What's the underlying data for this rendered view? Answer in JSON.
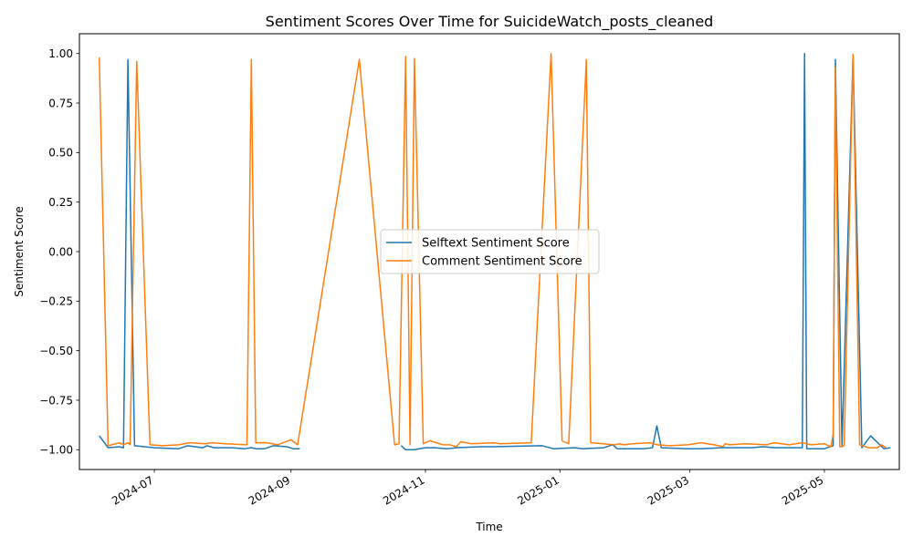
{
  "chart_data": {
    "type": "line",
    "title": "Sentiment Scores Over Time for SuicideWatch_posts_cleaned",
    "xlabel": "Time",
    "ylabel": "Sentiment Score",
    "xlim": [
      "2024-05-28",
      "2025-06-04"
    ],
    "ylim": [
      -1.1,
      1.1
    ],
    "x_ticks": [
      {
        "date": "2024-07-01",
        "label": "2024-07"
      },
      {
        "date": "2024-09-01",
        "label": "2024-09"
      },
      {
        "date": "2024-11-01",
        "label": "2024-11"
      },
      {
        "date": "2025-01-01",
        "label": "2025-01"
      },
      {
        "date": "2025-03-01",
        "label": "2025-03"
      },
      {
        "date": "2025-05-01",
        "label": "2025-05"
      }
    ],
    "y_ticks": [
      {
        "value": 1.0,
        "label": "1.00"
      },
      {
        "value": 0.75,
        "label": "0.75"
      },
      {
        "value": 0.5,
        "label": "0.50"
      },
      {
        "value": 0.25,
        "label": "0.25"
      },
      {
        "value": 0.0,
        "label": "0.00"
      },
      {
        "value": -0.25,
        "label": "−0.25"
      },
      {
        "value": -0.5,
        "label": "−0.50"
      },
      {
        "value": -0.75,
        "label": "−0.75"
      },
      {
        "value": -1.0,
        "label": "−1.00"
      }
    ],
    "grid": false,
    "legend_position": "center",
    "series": [
      {
        "name": "Selftext Sentiment Score",
        "color": "#1f77b4",
        "points": [
          [
            "2024-06-06",
            -0.93
          ],
          [
            "2024-06-10",
            -0.99
          ],
          [
            "2024-06-15",
            -0.985
          ],
          [
            "2024-06-17",
            -0.99
          ],
          [
            "2024-06-19",
            0.97
          ],
          [
            "2024-06-22",
            -0.98
          ],
          [
            "2024-07-01",
            -0.99
          ],
          [
            "2024-07-12",
            -0.995
          ],
          [
            "2024-07-16",
            -0.98
          ],
          [
            "2024-07-23",
            -0.99
          ],
          [
            "2024-07-25",
            -0.98
          ],
          [
            "2024-07-28",
            -0.99
          ],
          [
            "2024-08-05",
            -0.99
          ],
          [
            "2024-08-11",
            -0.995
          ],
          [
            "2024-08-14",
            -0.99
          ],
          [
            "2024-08-16",
            -0.995
          ],
          [
            "2024-08-20",
            -0.995
          ],
          [
            "2024-08-24",
            -0.98
          ],
          [
            "2024-08-30",
            -0.985
          ],
          [
            "2024-09-02",
            -0.995
          ],
          [
            "2024-09-05",
            -0.995
          ]
        ]
      },
      {
        "name": "Selftext Sentiment Score",
        "color": "#1f77b4",
        "points": [
          [
            "2024-10-21",
            -0.98
          ],
          [
            "2024-10-23",
            -1.0
          ],
          [
            "2024-10-27",
            -1.0
          ],
          [
            "2024-11-01",
            -0.99
          ],
          [
            "2024-11-05",
            -0.99
          ],
          [
            "2024-11-11",
            -0.995
          ],
          [
            "2024-11-15",
            -0.99
          ],
          [
            "2024-11-26",
            -0.985
          ],
          [
            "2024-12-01",
            -0.985
          ],
          [
            "2024-12-24",
            -0.98
          ],
          [
            "2024-12-29",
            -0.995
          ],
          [
            "2025-01-08",
            -0.99
          ],
          [
            "2025-01-11",
            -0.995
          ],
          [
            "2025-01-21",
            -0.99
          ],
          [
            "2025-01-25",
            -0.975
          ],
          [
            "2025-01-27",
            -0.995
          ],
          [
            "2025-02-08",
            -0.995
          ],
          [
            "2025-02-12",
            -0.99
          ],
          [
            "2025-02-14",
            -0.88
          ],
          [
            "2025-02-16",
            -0.99
          ],
          [
            "2025-02-28",
            -0.995
          ],
          [
            "2025-03-06",
            -0.995
          ],
          [
            "2025-03-15",
            -0.99
          ],
          [
            "2025-03-29",
            -0.99
          ],
          [
            "2025-04-03",
            -0.985
          ],
          [
            "2025-04-09",
            -0.99
          ],
          [
            "2025-04-17",
            -0.99
          ],
          [
            "2025-04-21",
            -0.99
          ],
          [
            "2025-04-22",
            1.0
          ],
          [
            "2025-04-23",
            -0.995
          ],
          [
            "2025-05-01",
            -0.995
          ],
          [
            "2025-05-05",
            -0.98
          ],
          [
            "2025-05-06",
            0.97
          ],
          [
            "2025-05-09",
            -0.985
          ],
          [
            "2025-05-14",
            0.99
          ],
          [
            "2025-05-18",
            -0.99
          ],
          [
            "2025-05-22",
            -0.93
          ],
          [
            "2025-05-28",
            -0.995
          ],
          [
            "2025-05-31",
            -0.99
          ]
        ]
      },
      {
        "name": "Comment Sentiment Score",
        "color": "#ff7f0e",
        "points": [
          [
            "2024-06-06",
            0.98
          ],
          [
            "2024-06-10",
            -0.98
          ],
          [
            "2024-06-15",
            -0.965
          ],
          [
            "2024-06-17",
            -0.975
          ],
          [
            "2024-06-19",
            -0.965
          ],
          [
            "2024-06-20",
            -0.975
          ],
          [
            "2024-06-23",
            0.96
          ],
          [
            "2024-06-29",
            -0.975
          ],
          [
            "2024-07-05",
            -0.98
          ],
          [
            "2024-07-12",
            -0.975
          ],
          [
            "2024-07-17",
            -0.965
          ],
          [
            "2024-07-24",
            -0.97
          ],
          [
            "2024-07-27",
            -0.965
          ],
          [
            "2024-08-02",
            -0.97
          ],
          [
            "2024-08-12",
            -0.975
          ],
          [
            "2024-08-14",
            0.97
          ],
          [
            "2024-08-16",
            -0.965
          ],
          [
            "2024-08-21",
            -0.965
          ],
          [
            "2024-08-26",
            -0.975
          ],
          [
            "2024-09-01",
            -0.95
          ],
          [
            "2024-09-04",
            -0.975
          ],
          [
            "2024-10-02",
            0.97
          ],
          [
            "2024-10-18",
            -0.975
          ],
          [
            "2024-10-20",
            -0.97
          ],
          [
            "2024-10-23",
            0.985
          ],
          [
            "2024-10-25",
            -0.975
          ],
          [
            "2024-10-27",
            0.975
          ],
          [
            "2024-10-31",
            -0.97
          ],
          [
            "2024-11-03",
            -0.955
          ],
          [
            "2024-11-09",
            -0.975
          ],
          [
            "2024-11-12",
            -0.975
          ],
          [
            "2024-11-15",
            -0.985
          ],
          [
            "2024-11-17",
            -0.96
          ],
          [
            "2024-11-22",
            -0.97
          ],
          [
            "2024-12-02",
            -0.965
          ],
          [
            "2024-12-05",
            -0.97
          ],
          [
            "2024-12-19",
            -0.965
          ],
          [
            "2024-12-28",
            1.0
          ],
          [
            "2025-01-02",
            -0.955
          ],
          [
            "2025-01-05",
            -0.97
          ],
          [
            "2025-01-13",
            0.97
          ],
          [
            "2025-01-15",
            -0.965
          ],
          [
            "2025-01-26",
            -0.975
          ],
          [
            "2025-01-28",
            -0.97
          ],
          [
            "2025-01-30",
            -0.975
          ],
          [
            "2025-02-03",
            -0.97
          ],
          [
            "2025-02-11",
            -0.965
          ],
          [
            "2025-02-14",
            -0.975
          ],
          [
            "2025-02-20",
            -0.98
          ],
          [
            "2025-02-28",
            -0.975
          ],
          [
            "2025-03-03",
            -0.97
          ],
          [
            "2025-03-06",
            -0.965
          ],
          [
            "2025-03-12",
            -0.975
          ],
          [
            "2025-03-16",
            -0.985
          ],
          [
            "2025-03-17",
            -0.97
          ],
          [
            "2025-03-19",
            -0.975
          ],
          [
            "2025-03-26",
            -0.97
          ],
          [
            "2025-04-05",
            -0.975
          ],
          [
            "2025-04-08",
            -0.965
          ],
          [
            "2025-04-15",
            -0.975
          ],
          [
            "2025-04-21",
            -0.965
          ],
          [
            "2025-04-23",
            -0.97
          ],
          [
            "2025-04-25",
            -0.975
          ],
          [
            "2025-05-01",
            -0.97
          ],
          [
            "2025-05-04",
            -0.985
          ],
          [
            "2025-05-05",
            -0.92
          ],
          [
            "2025-05-06",
            0.93
          ],
          [
            "2025-05-08",
            -0.985
          ],
          [
            "2025-05-10",
            -0.98
          ],
          [
            "2025-05-14",
            0.995
          ],
          [
            "2025-05-17",
            -0.975
          ],
          [
            "2025-05-21",
            -0.99
          ],
          [
            "2025-05-25",
            -0.99
          ],
          [
            "2025-05-27",
            -0.975
          ],
          [
            "2025-05-29",
            -0.99
          ]
        ]
      }
    ]
  }
}
